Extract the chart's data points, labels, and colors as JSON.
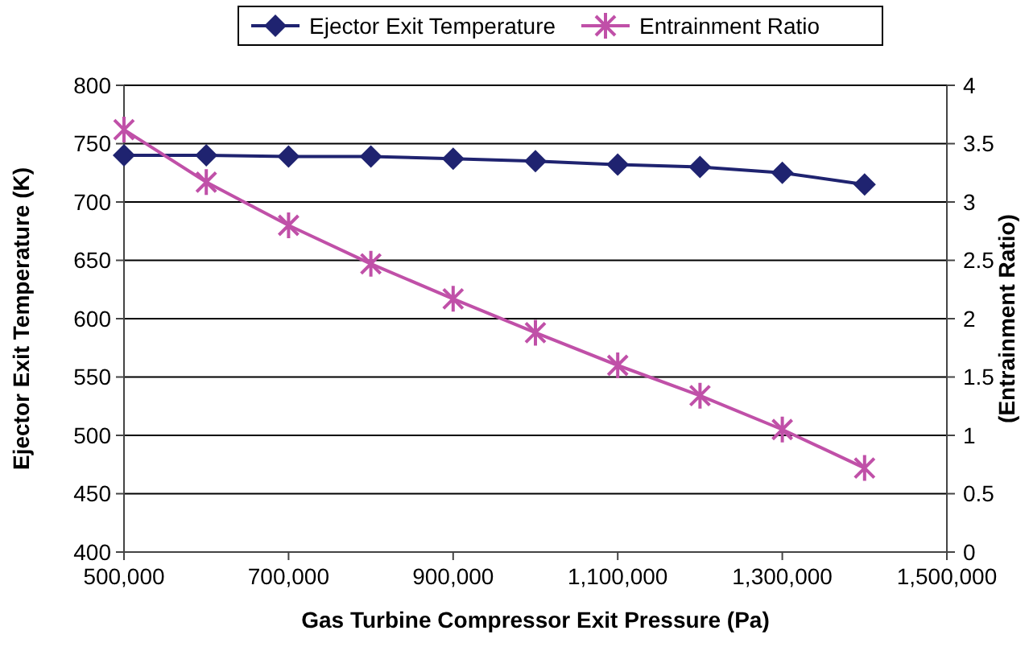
{
  "chart_data": {
    "type": "line",
    "xlabel": "Gas Turbine Compressor Exit Pressure (Pa)",
    "ylabel": "Ejector Exit Temperature (K)",
    "y2label": "(Entrainment Ratio)",
    "x": [
      500000,
      600000,
      700000,
      800000,
      900000,
      1000000,
      1100000,
      1200000,
      1300000,
      1400000
    ],
    "xlim": [
      500000,
      1500000
    ],
    "xticks": [
      {
        "value": 500000,
        "label": "500,000"
      },
      {
        "value": 700000,
        "label": "700,000"
      },
      {
        "value": 900000,
        "label": "900,000"
      },
      {
        "value": 1100000,
        "label": "1,100,000"
      },
      {
        "value": 1300000,
        "label": "1,300,000"
      },
      {
        "value": 1500000,
        "label": "1,500,000"
      }
    ],
    "ylim": [
      400,
      800
    ],
    "yticks": [
      400,
      450,
      500,
      550,
      600,
      650,
      700,
      750,
      800
    ],
    "y2lim": [
      0,
      4
    ],
    "y2ticks": [
      0,
      0.5,
      1,
      1.5,
      2,
      2.5,
      3,
      3.5,
      4
    ],
    "grid": "y",
    "legend": "top",
    "series": [
      {
        "name": "Ejector Exit Temperature",
        "color": "#1f2370",
        "marker": "diamond",
        "values": [
          740,
          740,
          739,
          739,
          737,
          735,
          732,
          730,
          725,
          715
        ]
      },
      {
        "name": "Entrainment Ratio",
        "color": "#c050a8",
        "marker": "cross",
        "axis": "y2",
        "values": [
          3.62,
          3.17,
          2.8,
          2.47,
          2.17,
          1.88,
          1.6,
          1.34,
          1.05,
          0.72
        ]
      }
    ]
  }
}
